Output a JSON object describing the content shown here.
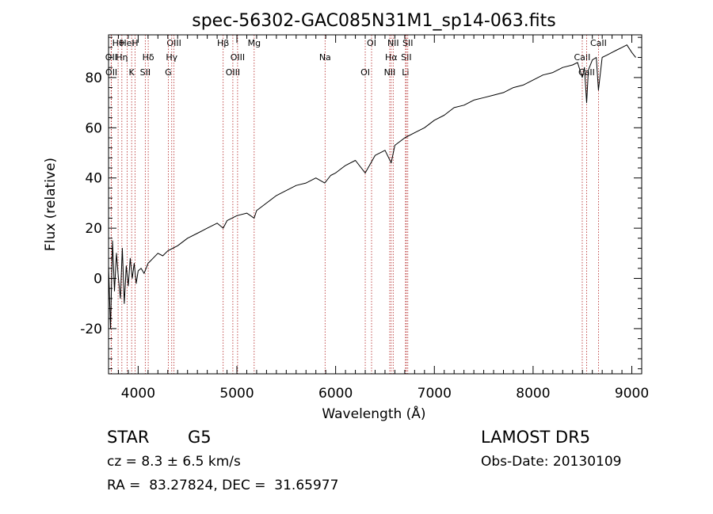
{
  "chart_data": {
    "type": "line",
    "title": "spec-56302-GAC085N31M1_sp14-063.fits",
    "xlabel": "Wavelength (Å)",
    "ylabel": "Flux (relative)",
    "xlim": [
      3700,
      9100
    ],
    "ylim": [
      -38,
      97
    ],
    "xticks": [
      4000,
      5000,
      6000,
      7000,
      8000,
      9000
    ],
    "yticks": [
      -20,
      0,
      20,
      40,
      60,
      80
    ],
    "grid": false,
    "series": [
      {
        "x": [
          3700,
          3720,
          3740,
          3760,
          3780,
          3800,
          3820,
          3840,
          3860,
          3880,
          3900,
          3920,
          3940,
          3960,
          3980,
          4000,
          4030,
          4060,
          4100,
          4150,
          4200,
          4250,
          4300,
          4350,
          4400,
          4500,
          4600,
          4700,
          4800,
          4861,
          4900,
          5000,
          5100,
          5175,
          5200,
          5300,
          5400,
          5500,
          5600,
          5700,
          5800,
          5890,
          5950,
          6000,
          6100,
          6200,
          6300,
          6400,
          6500,
          6563,
          6600,
          6700,
          6800,
          6900,
          7000,
          7100,
          7200,
          7300,
          7400,
          7500,
          7600,
          7700,
          7800,
          7900,
          8000,
          8100,
          8200,
          8300,
          8400,
          8450,
          8498,
          8520,
          8542,
          8560,
          8600,
          8640,
          8662,
          8700,
          8750,
          8800,
          8850,
          8900,
          8950,
          9000,
          9020,
          9040
        ],
        "y": [
          5,
          -20,
          15,
          -5,
          10,
          0,
          -8,
          12,
          -10,
          5,
          -3,
          8,
          0,
          6,
          -2,
          3,
          4,
          2,
          6,
          8,
          10,
          9,
          11,
          12,
          13,
          16,
          18,
          20,
          22,
          20,
          23,
          25,
          26,
          24,
          27,
          30,
          33,
          35,
          37,
          38,
          40,
          38,
          41,
          42,
          45,
          47,
          42,
          49,
          51,
          46,
          53,
          56,
          58,
          60,
          63,
          65,
          68,
          69,
          71,
          72,
          73,
          74,
          76,
          77,
          79,
          81,
          82,
          84,
          85,
          86,
          80,
          84,
          70,
          83,
          87,
          88,
          75,
          88,
          89,
          90,
          91,
          92,
          93,
          90,
          89,
          88
        ]
      }
    ],
    "lines": [
      {
        "label": "Hθ",
        "x": 3797
      },
      {
        "label": "OII",
        "x": 3727
      },
      {
        "label": "OII",
        "x": 3729
      },
      {
        "label": "HeI",
        "x": 3889
      },
      {
        "label": "Hη",
        "x": 3835
      },
      {
        "label": "K",
        "x": 3934
      },
      {
        "label": "H",
        "x": 3968
      },
      {
        "label": "Hδ",
        "x": 4102
      },
      {
        "label": "SII",
        "x": 4072
      },
      {
        "label": "OIII",
        "x": 4363
      },
      {
        "label": "Hγ",
        "x": 4340
      },
      {
        "label": "G",
        "x": 4305
      },
      {
        "label": "Hβ",
        "x": 4861
      },
      {
        "label": "OIII",
        "x": 5007
      },
      {
        "label": "OIII",
        "x": 4959
      },
      {
        "label": "Mg",
        "x": 5175
      },
      {
        "label": "Na",
        "x": 5893
      },
      {
        "label": "OI",
        "x": 6300
      },
      {
        "label": "OI",
        "x": 6364
      },
      {
        "label": "Hα",
        "x": 6563
      },
      {
        "label": "NII",
        "x": 6548
      },
      {
        "label": "NII",
        "x": 6583
      },
      {
        "label": "SII",
        "x": 6716
      },
      {
        "label": "Li",
        "x": 6708
      },
      {
        "label": "SII",
        "x": 6731
      },
      {
        "label": "CaII",
        "x": 8498
      },
      {
        "label": "CaII",
        "x": 8542
      },
      {
        "label": "CaII",
        "x": 8662
      }
    ]
  },
  "info": {
    "class": "STAR",
    "subclass": "G5",
    "cz": "cz = 8.3 ± 6.5 km/s",
    "coords": "RA =  83.27824, DEC =  31.65977",
    "survey": "LAMOST DR5",
    "obsdate": "Obs-Date: 20130109"
  },
  "colors": {
    "axes": "#000000",
    "spectrum": "#000000",
    "lines": "#b22222"
  }
}
